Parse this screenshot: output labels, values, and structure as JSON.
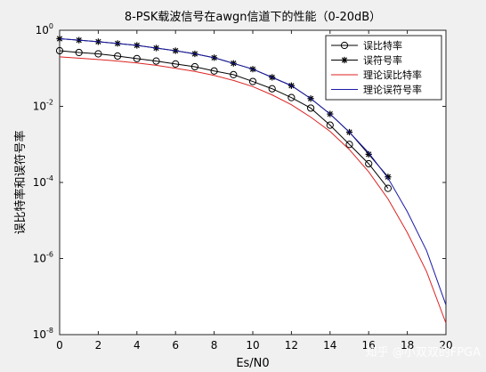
{
  "chart_data": {
    "type": "line",
    "title": "8-PSK载波信号在awgn信道下的性能（0-20dB）",
    "xlabel": "Es/N0",
    "ylabel": "误比特率和误符号率",
    "xlim": [
      0,
      20
    ],
    "ylim_log10": [
      -8,
      0
    ],
    "yscale": "log",
    "grid": false,
    "legend_position": "top-right",
    "x_ticks": [
      "0",
      "2",
      "4",
      "6",
      "8",
      "10",
      "12",
      "14",
      "16",
      "18",
      "20"
    ],
    "y_ticks": [
      {
        "base": "10",
        "exp": "0"
      },
      {
        "base": "10",
        "exp": "-2"
      },
      {
        "base": "10",
        "exp": "-4"
      },
      {
        "base": "10",
        "exp": "-6"
      },
      {
        "base": "10",
        "exp": "-8"
      }
    ],
    "series": [
      {
        "name": "误比特率",
        "color": "#000000",
        "style": "marker-circle",
        "x": [
          0,
          1,
          2,
          3,
          4,
          5,
          6,
          7,
          8,
          9,
          10,
          11,
          12,
          13,
          14,
          15,
          16,
          17
        ],
        "y": [
          0.29,
          0.26,
          0.24,
          0.21,
          0.18,
          0.155,
          0.13,
          0.11,
          0.085,
          0.068,
          0.045,
          0.029,
          0.017,
          0.009,
          0.0032,
          0.001,
          0.00031,
          7e-05
        ]
      },
      {
        "name": "误符号率",
        "color": "#000000",
        "style": "marker-star",
        "x": [
          0,
          1,
          2,
          3,
          4,
          5,
          6,
          7,
          8,
          9,
          10,
          11,
          12,
          13,
          14,
          15,
          16,
          17
        ],
        "y": [
          0.6,
          0.55,
          0.5,
          0.45,
          0.4,
          0.34,
          0.29,
          0.24,
          0.19,
          0.135,
          0.095,
          0.058,
          0.035,
          0.016,
          0.0063,
          0.0021,
          0.00055,
          0.00014
        ]
      },
      {
        "name": "理论误比特率",
        "color": "#dd2222",
        "style": "line",
        "x": [
          0,
          1,
          2,
          3,
          4,
          5,
          6,
          7,
          8,
          9,
          10,
          11,
          12,
          13,
          14,
          15,
          16,
          17,
          18,
          19,
          20
        ],
        "y": [
          0.2,
          0.185,
          0.17,
          0.155,
          0.138,
          0.12,
          0.1,
          0.083,
          0.065,
          0.048,
          0.033,
          0.02,
          0.011,
          0.0052,
          0.0022,
          0.00073,
          0.00019,
          3.7e-05,
          4.8e-06,
          4.5e-07,
          2e-08
        ]
      },
      {
        "name": "理论误符号率",
        "color": "#1a1aa6",
        "style": "line",
        "x": [
          0,
          1,
          2,
          3,
          4,
          5,
          6,
          7,
          8,
          9,
          10,
          11,
          12,
          13,
          14,
          15,
          16,
          17,
          18,
          19,
          20
        ],
        "y": [
          0.6,
          0.55,
          0.5,
          0.45,
          0.4,
          0.34,
          0.29,
          0.24,
          0.19,
          0.135,
          0.095,
          0.058,
          0.035,
          0.016,
          0.0063,
          0.0021,
          0.0006,
          0.00013,
          1.7e-05,
          1.6e-06,
          6e-08
        ]
      }
    ]
  },
  "watermark": "知乎 @小双双的FPGA"
}
